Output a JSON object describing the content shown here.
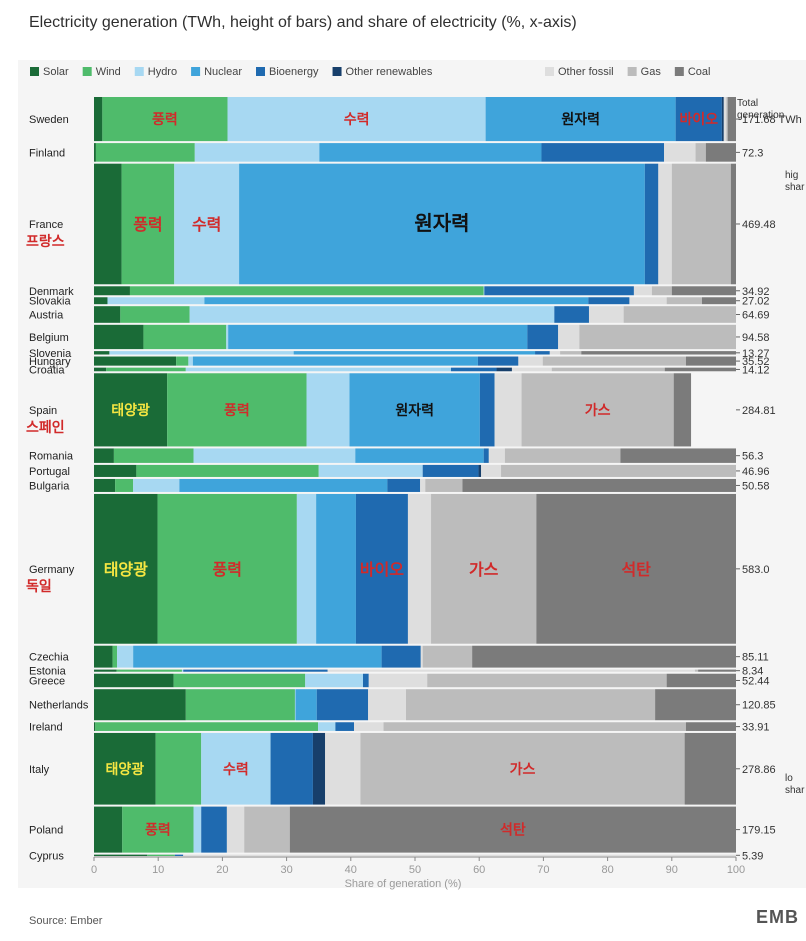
{
  "header": {
    "title": "Electricity generation (TWh, height of bars) and share of electricity (%, x-axis)"
  },
  "footer": {
    "source": "Source: Ember",
    "brand": "EMB"
  },
  "colors": {
    "Solar": "#1a6b37",
    "Wind": "#4fbb6b",
    "Hydro": "#a7d8f2",
    "Nuclear": "#3fa4db",
    "Bioenergy": "#1f6ab0",
    "Other renewables": "#173f6b",
    "Other fossil": "#dedede",
    "Gas": "#bcbcbc",
    "Coal": "#7b7b7b"
  },
  "chart_data": {
    "type": "marimekko",
    "title": "Electricity generation (TWh, height of bars) and share of electricity (%, x-axis)",
    "xlabel": "Share of generation (%)",
    "ylabel": "",
    "xlim": [
      0,
      100
    ],
    "x_ticks": [
      0,
      10,
      20,
      30,
      40,
      50,
      60,
      70,
      80,
      90,
      100
    ],
    "legend": {
      "placement": "top",
      "entries": [
        "Solar",
        "Wind",
        "Hydro",
        "Nuclear",
        "Bioenergy",
        "Other renewables",
        "Other fossil",
        "Gas",
        "Coal"
      ]
    },
    "right_axis": {
      "header": [
        "Total",
        "generation"
      ],
      "top_note": [
        "hig",
        "shar"
      ],
      "bottom_note": [
        "lo",
        "shar"
      ]
    },
    "series": [
      "Solar",
      "Wind",
      "Hydro",
      "Nuclear",
      "Bioenergy",
      "Other renewables",
      "Other fossil",
      "Gas",
      "Coal"
    ],
    "countries": [
      {
        "name": "Sweden",
        "total": 171.68,
        "total_label": "171.68 TWh",
        "shares": [
          1.3,
          19.5,
          40.2,
          29.6,
          7.2,
          0.3,
          0.4,
          0.2,
          1.3
        ]
      },
      {
        "name": "Finland",
        "total": 72.3,
        "total_label": "72.3",
        "shares": [
          0.3,
          15.4,
          19.4,
          34.6,
          19.1,
          0,
          4.9,
          1.6,
          4.7
        ]
      },
      {
        "name": "France",
        "total": 469.48,
        "total_label": "469.48",
        "shares": [
          4.3,
          8.2,
          10.1,
          63.2,
          2.1,
          0,
          2.1,
          9.2,
          0.8
        ]
      },
      {
        "name": "Denmark",
        "total": 34.92,
        "total_label": "34.92",
        "shares": [
          5.6,
          55.1,
          0.1,
          0,
          23.3,
          0,
          2.8,
          3.1,
          10
        ]
      },
      {
        "name": "Slovakia",
        "total": 27.02,
        "total_label": "27.02",
        "shares": [
          2.1,
          0,
          15.1,
          59.8,
          6.4,
          0,
          5.8,
          5.5,
          5.3
        ]
      },
      {
        "name": "Austria",
        "total": 64.69,
        "total_label": "64.69",
        "shares": [
          4.1,
          10.8,
          56.8,
          0,
          5.4,
          0,
          5.4,
          17.5,
          0
        ]
      },
      {
        "name": "Belgium",
        "total": 94.58,
        "total_label": "94.58",
        "shares": [
          7.7,
          12.9,
          0.3,
          46.6,
          4.8,
          0,
          3.3,
          24.4,
          0
        ]
      },
      {
        "name": "Slovenia",
        "total": 13.27,
        "total_label": "13.27",
        "shares": [
          2.4,
          0,
          28.7,
          37.6,
          2.3,
          0,
          1.6,
          3.3,
          24.1
        ]
      },
      {
        "name": "Hungary",
        "total": 35.52,
        "total_label": "35.52",
        "shares": [
          12.8,
          1.9,
          0.7,
          44.4,
          6.3,
          0,
          3.8,
          22.3,
          7.8
        ]
      },
      {
        "name": "Croatia",
        "total": 14.12,
        "total_label": "14.12",
        "shares": [
          1.9,
          12.4,
          41.3,
          0,
          7.1,
          2.4,
          6.2,
          17.6,
          11.1
        ]
      },
      {
        "name": "Spain",
        "total": 284.81,
        "total_label": "284.81",
        "shares": [
          11.4,
          21.7,
          6.7,
          20.3,
          2.3,
          0,
          4.2,
          23.7,
          2.7
        ]
      },
      {
        "name": "Romania",
        "total": 56.3,
        "total_label": "56.3",
        "shares": [
          3.1,
          12.4,
          25.2,
          20,
          0.8,
          0,
          2.5,
          18,
          18
        ]
      },
      {
        "name": "Portugal",
        "total": 46.96,
        "total_label": "46.96",
        "shares": [
          6.6,
          28.4,
          16.2,
          0,
          8.7,
          0.4,
          3.1,
          36.6,
          0
        ]
      },
      {
        "name": "Bulgaria",
        "total": 50.58,
        "total_label": "50.58",
        "shares": [
          3.3,
          2.8,
          7.2,
          32.4,
          5.1,
          0,
          0.8,
          5.8,
          42.6
        ]
      },
      {
        "name": "Germany",
        "total": 583.0,
        "total_label": "583.0",
        "shares": [
          9.9,
          21.7,
          3,
          6.2,
          8.1,
          0,
          3.6,
          16.4,
          31.1
        ]
      },
      {
        "name": "Czechia",
        "total": 85.11,
        "total_label": "85.11",
        "shares": [
          2.9,
          0.7,
          2.5,
          38.7,
          6.1,
          0,
          0.3,
          7.7,
          41.1
        ]
      },
      {
        "name": "Estonia",
        "total": 8.34,
        "total_label": "8.34",
        "shares": [
          3.5,
          10.2,
          0.2,
          0,
          22.5,
          0,
          57.2,
          0.5,
          5.9
        ]
      },
      {
        "name": "Greece",
        "total": 52.44,
        "total_label": "52.44",
        "shares": [
          12.4,
          20.5,
          9,
          0,
          0.9,
          0,
          9.1,
          37.3,
          10.8
        ]
      },
      {
        "name": "Netherlands",
        "total": 120.85,
        "total_label": "120.85",
        "shares": [
          14.3,
          17,
          0.1,
          3.3,
          8,
          0,
          5.9,
          38.8,
          12.6
        ]
      },
      {
        "name": "Ireland",
        "total": 33.91,
        "total_label": "33.91",
        "shares": [
          0.2,
          34.7,
          2.7,
          0,
          2.9,
          0,
          4.6,
          47.1,
          7.8
        ]
      },
      {
        "name": "Italy",
        "total": 278.86,
        "total_label": "278.86",
        "shares": [
          9.6,
          7.1,
          10.8,
          0,
          6.6,
          1.9,
          5.5,
          50.5,
          8
        ]
      },
      {
        "name": "Poland",
        "total": 179.15,
        "total_label": "179.15",
        "shares": [
          4.4,
          11.1,
          1.2,
          0,
          4,
          0,
          2.7,
          7.1,
          69.5
        ]
      },
      {
        "name": "Cyprus",
        "total": 5.39,
        "total_label": "5.39",
        "shares": [
          8.3,
          4.3,
          0,
          0,
          1.3,
          0,
          86.1,
          0,
          0
        ]
      }
    ],
    "annotations": [
      {
        "country": "Sweden",
        "series": "Wind",
        "text": "풍력",
        "color": "#d12a2a"
      },
      {
        "country": "Sweden",
        "series": "Hydro",
        "text": "수력",
        "color": "#d12a2a"
      },
      {
        "country": "Sweden",
        "series": "Nuclear",
        "text": "원자력",
        "color": "#111111"
      },
      {
        "country": "Sweden",
        "series": "Bioenergy",
        "text": "바이오",
        "color": "#d12a2a"
      },
      {
        "country": "France",
        "series": "Wind",
        "text": "풍력",
        "color": "#d12a2a"
      },
      {
        "country": "France",
        "series": "Hydro",
        "text": "수력",
        "color": "#d12a2a"
      },
      {
        "country": "France",
        "series": "Nuclear",
        "text": "원자력",
        "color": "#111111"
      },
      {
        "country": "Spain",
        "series": "Solar",
        "text": "태양광",
        "color": "#f5e642"
      },
      {
        "country": "Spain",
        "series": "Wind",
        "text": "풍력",
        "color": "#d12a2a"
      },
      {
        "country": "Spain",
        "series": "Nuclear",
        "text": "원자력",
        "color": "#111111"
      },
      {
        "country": "Spain",
        "series": "Gas",
        "text": "가스",
        "color": "#d12a2a"
      },
      {
        "country": "Germany",
        "series": "Solar",
        "text": "태양광",
        "color": "#f5e642"
      },
      {
        "country": "Germany",
        "series": "Wind",
        "text": "풍력",
        "color": "#d12a2a"
      },
      {
        "country": "Germany",
        "series": "Bioenergy",
        "text": "바이오",
        "color": "#d12a2a"
      },
      {
        "country": "Germany",
        "series": "Gas",
        "text": "가스",
        "color": "#d12a2a"
      },
      {
        "country": "Germany",
        "series": "Coal",
        "text": "석탄",
        "color": "#d12a2a"
      },
      {
        "country": "Italy",
        "series": "Solar",
        "text": "태양광",
        "color": "#f5e642"
      },
      {
        "country": "Italy",
        "series": "Hydro",
        "text": "수력",
        "color": "#d12a2a"
      },
      {
        "country": "Italy",
        "series": "Gas",
        "text": "가스",
        "color": "#d12a2a"
      },
      {
        "country": "Poland",
        "series": "Wind",
        "text": "풍력",
        "color": "#d12a2a"
      },
      {
        "country": "Poland",
        "series": "Coal",
        "text": "석탄",
        "color": "#d12a2a"
      }
    ],
    "country_annotations": [
      {
        "country": "France",
        "text": "프랑스",
        "color": "#d12a2a"
      },
      {
        "country": "Spain",
        "text": "스페인",
        "color": "#d12a2a"
      },
      {
        "country": "Germany",
        "text": "독일",
        "color": "#d12a2a"
      }
    ]
  }
}
